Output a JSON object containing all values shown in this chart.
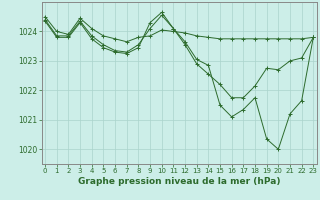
{
  "title": "Graphe pression niveau de la mer (hPa)",
  "x_hours": [
    0,
    1,
    2,
    3,
    4,
    5,
    6,
    7,
    8,
    9,
    10,
    11,
    12,
    13,
    14,
    15,
    16,
    17,
    18,
    19,
    20,
    21,
    22,
    23
  ],
  "series": [
    [
      1024.5,
      1024.0,
      1023.9,
      1024.45,
      1024.1,
      1023.85,
      1023.75,
      1023.65,
      1023.8,
      1023.85,
      1024.05,
      1024.0,
      1023.95,
      1023.85,
      1023.8,
      1023.75,
      1023.75,
      1023.75,
      1023.75,
      1023.75,
      1023.75,
      1023.75,
      1023.75,
      1023.8
    ],
    [
      1024.4,
      1023.85,
      1023.85,
      1024.35,
      1023.85,
      1023.55,
      1023.35,
      1023.3,
      1023.55,
      1024.1,
      1024.55,
      1024.1,
      1023.55,
      1022.9,
      1022.55,
      1022.2,
      1021.75,
      1021.75,
      1022.15,
      1022.75,
      1022.7,
      1023.0,
      1023.1,
      1023.8
    ],
    [
      1024.35,
      1023.8,
      1023.8,
      1024.3,
      1023.75,
      1023.45,
      1023.3,
      1023.25,
      1023.45,
      1024.3,
      1024.65,
      1024.1,
      1023.65,
      1023.05,
      1022.85,
      1021.5,
      1021.1,
      1021.35,
      1021.75,
      1020.35,
      1020.0,
      1021.2,
      1021.65,
      1023.8
    ]
  ],
  "line_color": "#2d6b2d",
  "marker": "+",
  "marker_size": 3,
  "lw": 0.7,
  "bg_color": "#cceee8",
  "grid_color": "#aad4cc",
  "ylim": [
    1019.5,
    1025.0
  ],
  "yticks": [
    1020,
    1021,
    1022,
    1023,
    1024
  ],
  "xlim": [
    -0.3,
    23.3
  ],
  "x_tick_fontsize": 5.0,
  "y_tick_fontsize": 5.5,
  "title_fontsize": 6.5,
  "spine_color": "#888888"
}
